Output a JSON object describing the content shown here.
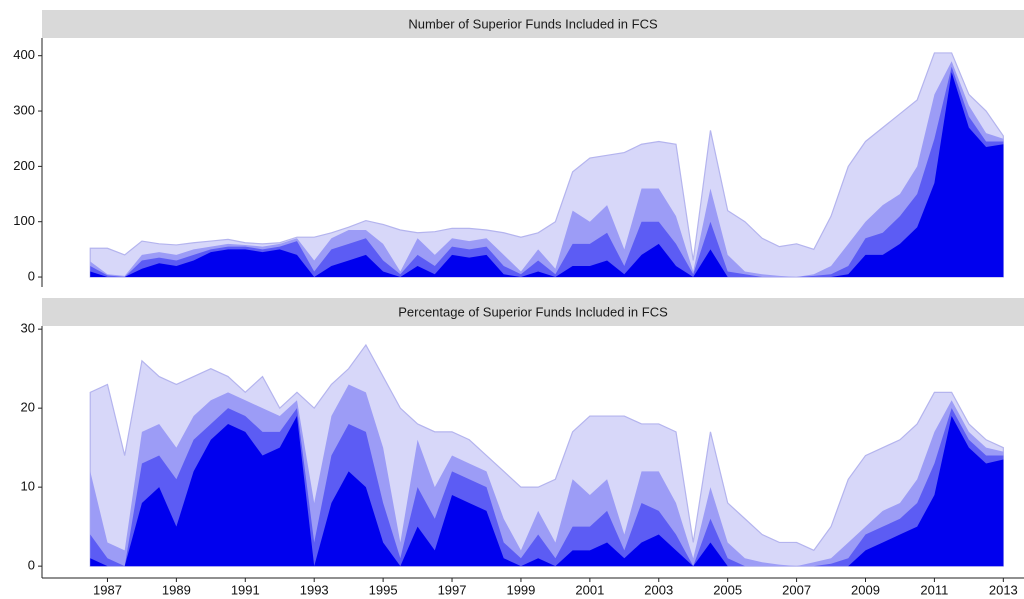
{
  "chart_data": [
    {
      "type": "area",
      "title": "Number of Superior Funds Included in FCS",
      "x": [
        1986.5,
        1987,
        1987.5,
        1988,
        1988.5,
        1989,
        1989.5,
        1990,
        1990.5,
        1991,
        1991.5,
        1992,
        1992.5,
        1993,
        1993.5,
        1994,
        1994.5,
        1995,
        1995.5,
        1996,
        1996.5,
        1997,
        1997.5,
        1998,
        1998.5,
        1999,
        1999.5,
        2000,
        2000.5,
        2001,
        2001.5,
        2002,
        2002.5,
        2003,
        2003.5,
        2004,
        2004.5,
        2005,
        2005.5,
        2006,
        2006.5,
        2007,
        2007.5,
        2008,
        2008.5,
        2009,
        2009.5,
        2010,
        2010.5,
        2011,
        2011.5,
        2012,
        2012.5,
        2013
      ],
      "series": [
        {
          "color": "#d7d7f9",
          "values": [
            52,
            52,
            40,
            65,
            60,
            58,
            62,
            65,
            68,
            62,
            60,
            62,
            72,
            72,
            80,
            90,
            102,
            95,
            85,
            80,
            82,
            88,
            88,
            85,
            80,
            72,
            80,
            100,
            190,
            215,
            220,
            225,
            240,
            245,
            240,
            30,
            265,
            120,
            100,
            70,
            55,
            60,
            50,
            110,
            200,
            245,
            270,
            295,
            320,
            405,
            405,
            330,
            300,
            255
          ]
        },
        {
          "color": "#9c9cf6",
          "values": [
            28,
            5,
            2,
            40,
            45,
            40,
            50,
            55,
            60,
            58,
            55,
            60,
            70,
            30,
            70,
            85,
            85,
            60,
            10,
            70,
            40,
            70,
            65,
            70,
            40,
            10,
            50,
            15,
            120,
            100,
            130,
            50,
            160,
            160,
            110,
            10,
            160,
            40,
            10,
            5,
            2,
            0,
            5,
            20,
            60,
            100,
            130,
            150,
            200,
            330,
            390,
            310,
            260,
            250
          ]
        },
        {
          "color": "#5c5cf4",
          "values": [
            20,
            3,
            0,
            30,
            35,
            30,
            40,
            50,
            55,
            55,
            50,
            55,
            65,
            10,
            50,
            60,
            70,
            30,
            5,
            40,
            20,
            55,
            50,
            55,
            20,
            5,
            30,
            5,
            60,
            60,
            80,
            20,
            100,
            100,
            60,
            5,
            100,
            10,
            5,
            0,
            0,
            0,
            2,
            5,
            20,
            70,
            80,
            110,
            150,
            250,
            380,
            290,
            245,
            245
          ]
        },
        {
          "color": "#0000ee",
          "values": [
            10,
            0,
            0,
            15,
            25,
            20,
            30,
            45,
            50,
            50,
            45,
            50,
            40,
            0,
            20,
            30,
            40,
            10,
            0,
            20,
            5,
            40,
            35,
            40,
            5,
            0,
            10,
            0,
            20,
            20,
            30,
            5,
            40,
            60,
            20,
            0,
            50,
            0,
            0,
            0,
            0,
            0,
            0,
            0,
            5,
            40,
            40,
            60,
            90,
            170,
            370,
            270,
            235,
            240
          ]
        }
      ],
      "xlim": [
        1985.1,
        2013.6
      ],
      "ylim": [
        -18,
        432
      ],
      "yticks": [
        0,
        100,
        200,
        300,
        400
      ]
    },
    {
      "type": "area",
      "title": "Percentage of Superior Funds Included in FCS",
      "x": [
        1986.5,
        1987,
        1987.5,
        1988,
        1988.5,
        1989,
        1989.5,
        1990,
        1990.5,
        1991,
        1991.5,
        1992,
        1992.5,
        1993,
        1993.5,
        1994,
        1994.5,
        1995,
        1995.5,
        1996,
        1996.5,
        1997,
        1997.5,
        1998,
        1998.5,
        1999,
        1999.5,
        2000,
        2000.5,
        2001,
        2001.5,
        2002,
        2002.5,
        2003,
        2003.5,
        2004,
        2004.5,
        2005,
        2005.5,
        2006,
        2006.5,
        2007,
        2007.5,
        2008,
        2008.5,
        2009,
        2009.5,
        2010,
        2010.5,
        2011,
        2011.5,
        2012,
        2012.5,
        2013
      ],
      "series": [
        {
          "color": "#d7d7f9",
          "values": [
            22,
            23,
            14,
            26,
            24,
            23,
            24,
            25,
            24,
            22,
            24,
            20,
            22,
            20,
            23,
            25,
            28,
            24,
            20,
            18,
            17,
            17,
            16,
            14,
            12,
            10,
            10,
            11,
            17,
            19,
            19,
            19,
            18,
            18,
            17,
            3,
            17,
            8,
            6,
            4,
            3,
            3,
            2,
            5,
            11,
            14,
            15,
            16,
            18,
            22,
            22,
            18,
            16,
            15
          ]
        },
        {
          "color": "#9c9cf6",
          "values": [
            12,
            3,
            2,
            17,
            18,
            15,
            19,
            21,
            22,
            21,
            20,
            19,
            21,
            8,
            19,
            23,
            22,
            15,
            3,
            16,
            10,
            14,
            13,
            12,
            6,
            2,
            7,
            3,
            11,
            9,
            11,
            4,
            12,
            12,
            8,
            1,
            10,
            3,
            1,
            0.5,
            0.2,
            0,
            0.5,
            1,
            3,
            5,
            7,
            8,
            11,
            17,
            21,
            17,
            15,
            14.5
          ]
        },
        {
          "color": "#5c5cf4",
          "values": [
            4,
            1,
            0,
            13,
            14,
            11,
            16,
            18,
            20,
            19,
            17,
            17,
            20,
            3,
            14,
            18,
            17,
            8,
            1,
            10,
            6,
            12,
            11,
            10,
            3,
            1,
            4,
            1,
            5,
            5,
            7,
            2,
            8,
            7,
            4,
            0,
            6,
            1,
            0,
            0,
            0,
            0,
            0,
            0.3,
            1,
            4,
            5,
            6,
            8,
            13,
            20,
            16,
            14,
            14
          ]
        },
        {
          "color": "#0000ee",
          "values": [
            1,
            0,
            0,
            8,
            10,
            5,
            12,
            16,
            18,
            17,
            14,
            15,
            19,
            0,
            8,
            12,
            10,
            3,
            0,
            5,
            2,
            9,
            8,
            7,
            1,
            0,
            1,
            0,
            2,
            2,
            3,
            1,
            3,
            4,
            2,
            0,
            3,
            0,
            0,
            0,
            0,
            0,
            0,
            0,
            0,
            2,
            3,
            4,
            5,
            9,
            19,
            15,
            13,
            13.5
          ]
        }
      ],
      "xlim": [
        1985.1,
        2013.6
      ],
      "ylim": [
        -1.5,
        30.4
      ],
      "yticks": [
        0,
        10,
        20,
        30
      ],
      "xticks": [
        1987,
        1989,
        1991,
        1993,
        1995,
        1997,
        1999,
        2001,
        2003,
        2005,
        2007,
        2009,
        2011,
        2013
      ]
    }
  ]
}
